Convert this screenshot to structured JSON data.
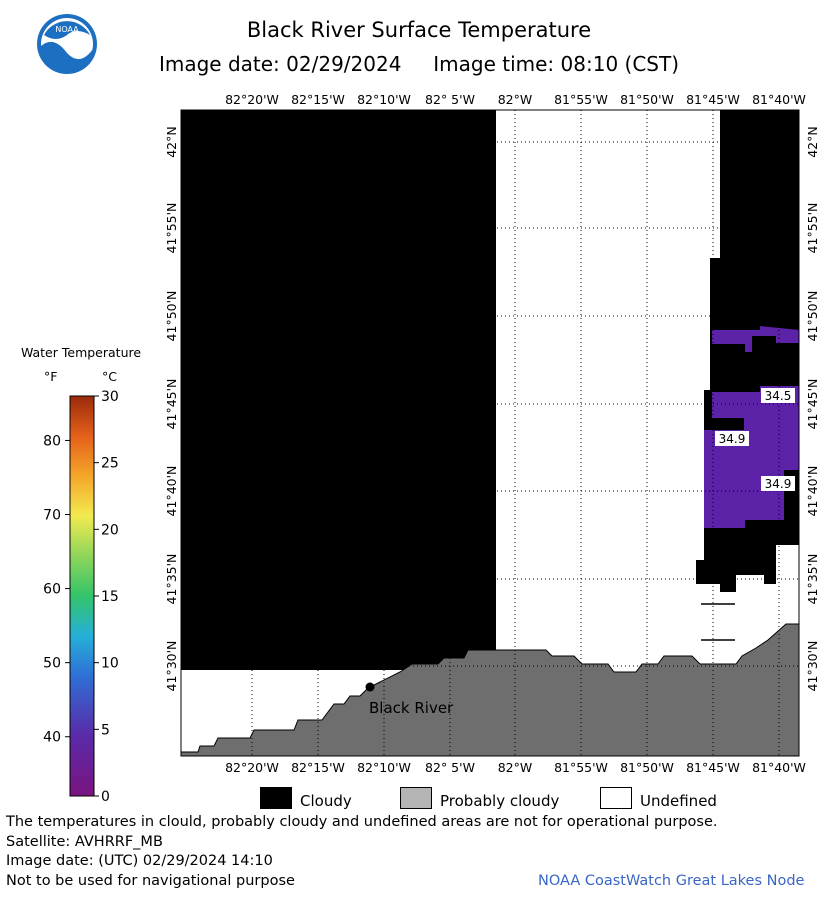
{
  "header": {
    "title": "Black River Surface Temperature",
    "image_date_label": "Image date:",
    "image_date": "02/29/2024",
    "image_time_label": "Image time:",
    "image_time": "08:10 (CST)",
    "logo_text": "NOAA"
  },
  "map": {
    "lon_labels": [
      "82°20'W",
      "82°15'W",
      "82°10'W",
      "82° 5'W",
      "82°W",
      "81°55'W",
      "81°50'W",
      "81°45'W",
      "81°40'W"
    ],
    "lat_labels": [
      "42°N",
      "41°55'N",
      "41°50'N",
      "41°45'N",
      "41°40'N",
      "41°35'N",
      "41°30'N"
    ],
    "place_label": "Black River",
    "temp_labels": [
      "34.5",
      "34.9",
      "34.9"
    ],
    "colors": {
      "cloudy": "#000000",
      "land": "#6e6e6e",
      "undefined": "#ffffff",
      "water_temp": "#5c22a8"
    }
  },
  "colorbar": {
    "title": "Water Temperature",
    "unit_f": "°F",
    "unit_c": "°C",
    "f_ticks": [
      "80",
      "70",
      "60",
      "50",
      "40"
    ],
    "c_ticks": [
      "30",
      "25",
      "20",
      "15",
      "10",
      "5",
      "0"
    ]
  },
  "legend": {
    "cloudy": "Cloudy",
    "probably_cloudy": "Probably cloudy",
    "undefined": "Undefined"
  },
  "footer": {
    "note": "The temperatures in clould, probably cloudy and undefined areas are not for operational purpose.",
    "satellite": "Satellite: AVHRRF_MB",
    "utc_date": "Image date: (UTC) 02/29/2024  14:10",
    "nav_note": "Not to be used for navigational purpose",
    "credit": "NOAA CoastWatch Great Lakes Node"
  }
}
